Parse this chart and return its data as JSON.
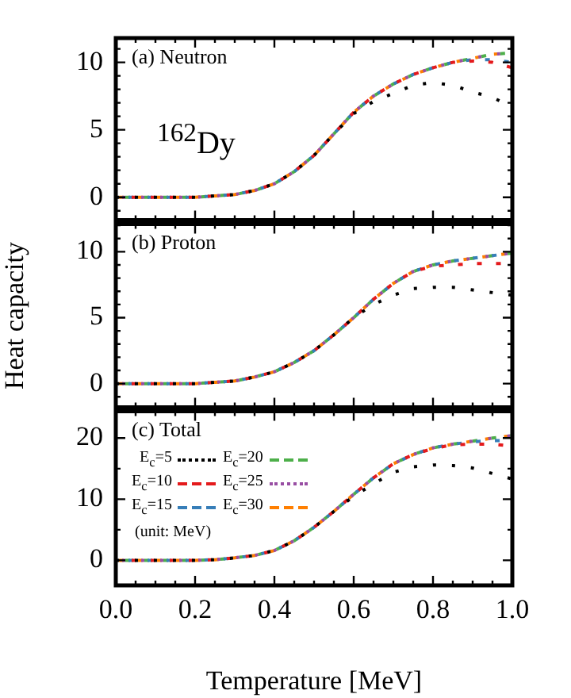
{
  "chart_data": [
    {
      "type": "line",
      "title": "(a) Neutron",
      "annotations": [
        "$^{162}$Dy"
      ],
      "x": [
        0,
        0.05,
        0.1,
        0.15,
        0.2,
        0.25,
        0.3,
        0.35,
        0.4,
        0.45,
        0.5,
        0.55,
        0.6,
        0.65,
        0.7,
        0.75,
        0.8,
        0.85,
        0.9,
        0.95,
        1.0
      ],
      "series": [
        {
          "color": "#000000",
          "line_style": "dotted",
          "values": [
            0,
            0,
            0,
            0,
            0,
            0.1,
            0.2,
            0.5,
            1.0,
            1.9,
            3.1,
            4.7,
            6.2,
            7.1,
            7.7,
            8.3,
            8.5,
            8.3,
            7.8,
            7.4,
            6.7
          ]
        },
        {
          "color": "#e41a1c",
          "line_style": "dashed",
          "values": [
            0,
            0,
            0,
            0,
            0,
            0.1,
            0.2,
            0.5,
            1.0,
            1.9,
            3.1,
            4.7,
            6.3,
            7.5,
            8.4,
            9.1,
            9.6,
            10.0,
            10.1,
            10.0,
            9.6
          ]
        },
        {
          "color": "#377eb8",
          "line_style": "dashed",
          "values": [
            0,
            0,
            0,
            0,
            0,
            0.1,
            0.2,
            0.5,
            1.0,
            1.9,
            3.1,
            4.7,
            6.3,
            7.5,
            8.4,
            9.1,
            9.6,
            10.0,
            10.2,
            10.2,
            10.0
          ]
        },
        {
          "color": "#4daf4a",
          "line_style": "dashed",
          "values": [
            0,
            0,
            0,
            0,
            0,
            0.1,
            0.2,
            0.5,
            1.0,
            1.9,
            3.1,
            4.7,
            6.3,
            7.5,
            8.4,
            9.1,
            9.6,
            10.0,
            10.3,
            10.6,
            10.7
          ]
        },
        {
          "color": "#984ea3",
          "line_style": "dotted",
          "values": [
            0,
            0,
            0,
            0,
            0,
            0.1,
            0.2,
            0.5,
            1.0,
            1.9,
            3.1,
            4.7,
            6.3,
            7.5,
            8.4,
            9.1,
            9.6,
            10.0,
            10.3,
            10.6,
            10.7
          ]
        },
        {
          "color": "#ff7f00",
          "line_style": "dashed",
          "values": [
            0,
            0,
            0,
            0,
            0,
            0.1,
            0.2,
            0.5,
            1.0,
            1.9,
            3.1,
            4.7,
            6.3,
            7.5,
            8.4,
            9.1,
            9.6,
            10.0,
            10.3,
            10.6,
            10.7
          ]
        }
      ],
      "xlim": [
        0,
        1
      ],
      "xticks": [
        0,
        {
          "value": 0.05,
          "label": null
        },
        {
          "value": 0.1,
          "label": null
        },
        {
          "value": 0.15,
          "label": null
        },
        0.2,
        {
          "value": 0.25,
          "label": null
        },
        {
          "value": 0.3,
          "label": null
        },
        {
          "value": 0.35,
          "label": null
        },
        0.4,
        {
          "value": 0.45,
          "label": null
        },
        {
          "value": 0.5,
          "label": null
        },
        {
          "value": 0.55,
          "label": null
        },
        0.6,
        {
          "value": 0.65,
          "label": null
        },
        {
          "value": 0.7,
          "label": null
        },
        {
          "value": 0.75,
          "label": null
        },
        0.8,
        {
          "value": 0.85,
          "label": null
        },
        {
          "value": 0.9,
          "label": null
        },
        {
          "value": 0.95,
          "label": null
        },
        1
      ],
      "ylim": [
        -1.7,
        11.8
      ],
      "yticks": [
        {
          "value": -1,
          "label": null
        },
        0,
        {
          "value": 1,
          "label": null
        },
        {
          "value": 2,
          "label": null
        },
        {
          "value": 3,
          "label": null
        },
        {
          "value": 4,
          "label": null
        },
        5,
        {
          "value": 6,
          "label": null
        },
        {
          "value": 7,
          "label": null
        },
        {
          "value": 8,
          "label": null
        },
        {
          "value": 9,
          "label": null
        },
        10,
        {
          "value": 11,
          "label": null
        }
      ],
      "tick_labels": "y",
      "grid": false,
      "legend": false
    },
    {
      "type": "line",
      "title": "(b) Proton",
      "ylabel": "Heat capacity",
      "x": [
        0,
        0.05,
        0.1,
        0.15,
        0.2,
        0.25,
        0.3,
        0.35,
        0.4,
        0.45,
        0.5,
        0.55,
        0.6,
        0.65,
        0.7,
        0.75,
        0.8,
        0.85,
        0.9,
        0.95,
        1.0
      ],
      "series": [
        {
          "color": "#000000",
          "line_style": "dotted",
          "values": [
            0,
            0,
            0,
            0,
            0,
            0.1,
            0.2,
            0.5,
            0.9,
            1.6,
            2.5,
            3.7,
            5.0,
            6.0,
            6.7,
            7.2,
            7.3,
            7.3,
            7.1,
            6.9,
            6.7
          ]
        },
        {
          "color": "#e41a1c",
          "line_style": "dashed",
          "values": [
            0,
            0,
            0,
            0,
            0,
            0.1,
            0.2,
            0.5,
            0.9,
            1.6,
            2.5,
            3.7,
            5.0,
            6.4,
            7.6,
            8.5,
            8.9,
            9.0,
            9.1,
            9.1,
            9.1
          ]
        },
        {
          "color": "#377eb8",
          "line_style": "dashed",
          "values": [
            0,
            0,
            0,
            0,
            0,
            0.1,
            0.2,
            0.5,
            0.9,
            1.6,
            2.5,
            3.7,
            5.0,
            6.4,
            7.6,
            8.5,
            9.0,
            9.3,
            9.5,
            9.7,
            9.9
          ]
        },
        {
          "color": "#4daf4a",
          "line_style": "dashed",
          "values": [
            0,
            0,
            0,
            0,
            0,
            0.1,
            0.2,
            0.5,
            0.9,
            1.6,
            2.5,
            3.7,
            5.0,
            6.4,
            7.6,
            8.5,
            9.0,
            9.3,
            9.5,
            9.7,
            9.9
          ]
        },
        {
          "color": "#984ea3",
          "line_style": "dotted",
          "values": [
            0,
            0,
            0,
            0,
            0,
            0.1,
            0.2,
            0.5,
            0.9,
            1.6,
            2.5,
            3.7,
            5.0,
            6.4,
            7.6,
            8.5,
            9.0,
            9.3,
            9.5,
            9.7,
            9.9
          ]
        },
        {
          "color": "#ff7f00",
          "line_style": "dashed",
          "values": [
            0,
            0,
            0,
            0,
            0,
            0.1,
            0.2,
            0.5,
            0.9,
            1.6,
            2.5,
            3.7,
            5.0,
            6.4,
            7.6,
            8.5,
            9.0,
            9.3,
            9.5,
            9.7,
            9.9
          ]
        }
      ],
      "xlim": [
        0,
        1
      ],
      "xticks": [
        0,
        {
          "value": 0.05,
          "label": null
        },
        {
          "value": 0.1,
          "label": null
        },
        {
          "value": 0.15,
          "label": null
        },
        0.2,
        {
          "value": 0.25,
          "label": null
        },
        {
          "value": 0.3,
          "label": null
        },
        {
          "value": 0.35,
          "label": null
        },
        0.4,
        {
          "value": 0.45,
          "label": null
        },
        {
          "value": 0.5,
          "label": null
        },
        {
          "value": 0.55,
          "label": null
        },
        0.6,
        {
          "value": 0.65,
          "label": null
        },
        {
          "value": 0.7,
          "label": null
        },
        {
          "value": 0.75,
          "label": null
        },
        0.8,
        {
          "value": 0.85,
          "label": null
        },
        {
          "value": 0.9,
          "label": null
        },
        {
          "value": 0.95,
          "label": null
        },
        1
      ],
      "ylim": [
        -1.8,
        12.1
      ],
      "yticks": [
        {
          "value": -1,
          "label": null
        },
        0,
        {
          "value": 1,
          "label": null
        },
        {
          "value": 2,
          "label": null
        },
        {
          "value": 3,
          "label": null
        },
        {
          "value": 4,
          "label": null
        },
        5,
        {
          "value": 6,
          "label": null
        },
        {
          "value": 7,
          "label": null
        },
        {
          "value": 8,
          "label": null
        },
        {
          "value": 9,
          "label": null
        },
        10,
        {
          "value": 11,
          "label": null
        },
        {
          "value": 12,
          "label": null
        }
      ],
      "tick_labels": "y",
      "grid": false,
      "legend": false
    },
    {
      "type": "line",
      "title": "(c) Total",
      "xlabel": "Temperature [MeV]",
      "annotations": [
        "(unit: MeV)"
      ],
      "x": [
        0,
        0.05,
        0.1,
        0.15,
        0.2,
        0.25,
        0.3,
        0.35,
        0.4,
        0.45,
        0.5,
        0.55,
        0.6,
        0.65,
        0.7,
        0.75,
        0.8,
        0.85,
        0.9,
        0.95,
        1.0
      ],
      "series": [
        {
          "name": "E$_{c}$=5",
          "color": "#000000",
          "line_style": "dotted",
          "values": [
            0,
            0,
            0,
            0,
            0,
            0.1,
            0.4,
            0.8,
            1.6,
            3.2,
            5.4,
            8.0,
            10.5,
            12.5,
            14.4,
            15.3,
            15.6,
            15.5,
            15.1,
            14.2,
            13.3
          ]
        },
        {
          "name": "E$_{c}$=10",
          "color": "#e41a1c",
          "line_style": "dashed",
          "values": [
            0,
            0,
            0,
            0,
            0,
            0.1,
            0.4,
            0.8,
            1.6,
            3.2,
            5.4,
            8.0,
            10.8,
            13.5,
            15.8,
            17.3,
            18.3,
            18.9,
            19.0,
            19.0,
            18.7
          ]
        },
        {
          "name": "E$_{c}$=15",
          "color": "#377eb8",
          "line_style": "dashed",
          "values": [
            0,
            0,
            0,
            0,
            0,
            0.1,
            0.4,
            0.8,
            1.6,
            3.2,
            5.4,
            8.0,
            10.8,
            13.5,
            15.8,
            17.3,
            18.4,
            19.0,
            19.4,
            19.6,
            19.6
          ]
        },
        {
          "name": "E$_{c}$=20",
          "color": "#4daf4a",
          "line_style": "dashed",
          "values": [
            0,
            0,
            0,
            0,
            0,
            0.1,
            0.4,
            0.8,
            1.6,
            3.2,
            5.4,
            8.0,
            10.8,
            13.5,
            15.8,
            17.3,
            18.4,
            19.0,
            19.5,
            20.0,
            20.4
          ]
        },
        {
          "name": "E$_{c}$=25",
          "color": "#984ea3",
          "line_style": "dotted",
          "values": [
            0,
            0,
            0,
            0,
            0,
            0.1,
            0.4,
            0.8,
            1.6,
            3.2,
            5.4,
            8.0,
            10.8,
            13.5,
            15.8,
            17.3,
            18.4,
            19.0,
            19.5,
            20.0,
            20.4
          ]
        },
        {
          "name": "E$_{c}$=30",
          "color": "#ff7f00",
          "line_style": "dashed",
          "values": [
            0,
            0,
            0,
            0,
            0,
            0.1,
            0.4,
            0.8,
            1.6,
            3.2,
            5.4,
            8.0,
            10.8,
            13.5,
            15.8,
            17.3,
            18.4,
            19.0,
            19.5,
            20.0,
            20.4
          ]
        }
      ],
      "xlim": [
        0,
        1
      ],
      "xticks": [
        {
          "value": 0,
          "label": "0.0"
        },
        {
          "value": 0.05,
          "label": null
        },
        {
          "value": 0.1,
          "label": null
        },
        {
          "value": 0.15,
          "label": null
        },
        {
          "value": 0.2,
          "label": "0.2"
        },
        {
          "value": 0.25,
          "label": null
        },
        {
          "value": 0.3,
          "label": null
        },
        {
          "value": 0.35,
          "label": null
        },
        {
          "value": 0.4,
          "label": "0.4"
        },
        {
          "value": 0.45,
          "label": null
        },
        {
          "value": 0.5,
          "label": null
        },
        {
          "value": 0.55,
          "label": null
        },
        {
          "value": 0.6,
          "label": "0.6"
        },
        {
          "value": 0.65,
          "label": null
        },
        {
          "value": 0.7,
          "label": null
        },
        {
          "value": 0.75,
          "label": null
        },
        {
          "value": 0.8,
          "label": "0.8"
        },
        {
          "value": 0.85,
          "label": null
        },
        {
          "value": 0.9,
          "label": null
        },
        {
          "value": 0.95,
          "label": null
        },
        {
          "value": 1,
          "label": "1.0"
        }
      ],
      "ylim": [
        -4.1,
        24.4
      ],
      "yticks": [
        0,
        {
          "value": 5,
          "label": null
        },
        10,
        {
          "value": 15,
          "label": null
        },
        20
      ],
      "grid": false,
      "legend": "top left"
    }
  ]
}
